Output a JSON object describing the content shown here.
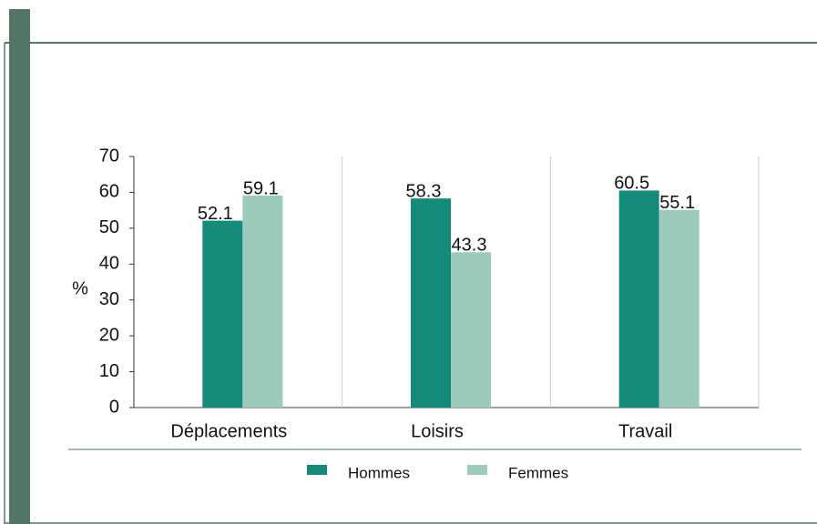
{
  "chart_data": {
    "type": "bar",
    "y_label": "%",
    "categories": [
      "Déplacements",
      "Loisirs",
      "Travail"
    ],
    "series": [
      {
        "name": "Hommes",
        "color": "#138a7a",
        "values": [
          52.1,
          58.3,
          60.5
        ]
      },
      {
        "name": "Femmes",
        "color": "#9ccbbc",
        "values": [
          59.1,
          43.3,
          55.1
        ]
      }
    ],
    "ylim": [
      0,
      70
    ],
    "yticks": [
      0,
      10,
      20,
      30,
      40,
      50,
      60,
      70
    ],
    "legend": "bottom"
  }
}
